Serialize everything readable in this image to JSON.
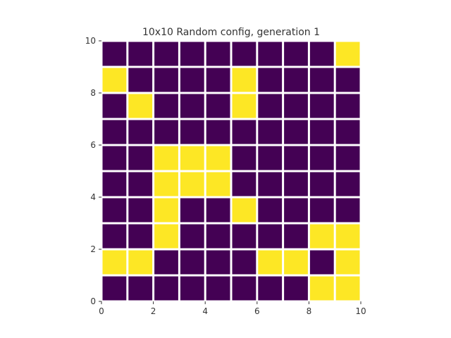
{
  "chart_data": {
    "type": "heatmap",
    "title": "10x10 Random config, generation 1",
    "xlabel": "",
    "ylabel": "",
    "xlim": [
      0,
      10
    ],
    "ylim": [
      0,
      10
    ],
    "x_ticks": [
      "0",
      "2",
      "4",
      "6",
      "8",
      "10"
    ],
    "y_ticks": [
      "0",
      "2",
      "4",
      "6",
      "8",
      "10"
    ],
    "grid": false,
    "colormap": {
      "0": "#440154",
      "1": "#fde725"
    },
    "cell_gap_color": "#ffffff",
    "rows_top_to_bottom": [
      [
        0,
        0,
        0,
        0,
        0,
        0,
        0,
        0,
        0,
        1
      ],
      [
        1,
        0,
        0,
        0,
        0,
        1,
        0,
        0,
        0,
        0
      ],
      [
        0,
        1,
        0,
        0,
        0,
        1,
        0,
        0,
        0,
        0
      ],
      [
        0,
        0,
        0,
        0,
        0,
        0,
        0,
        0,
        0,
        0
      ],
      [
        0,
        0,
        1,
        1,
        1,
        0,
        0,
        0,
        0,
        0
      ],
      [
        0,
        0,
        1,
        1,
        1,
        0,
        0,
        0,
        0,
        0
      ],
      [
        0,
        0,
        1,
        0,
        0,
        1,
        0,
        0,
        0,
        0
      ],
      [
        0,
        0,
        1,
        0,
        0,
        0,
        0,
        0,
        1,
        1
      ],
      [
        1,
        1,
        0,
        0,
        0,
        0,
        1,
        1,
        0,
        1
      ],
      [
        0,
        0,
        0,
        0,
        0,
        0,
        0,
        0,
        1,
        1
      ]
    ]
  }
}
